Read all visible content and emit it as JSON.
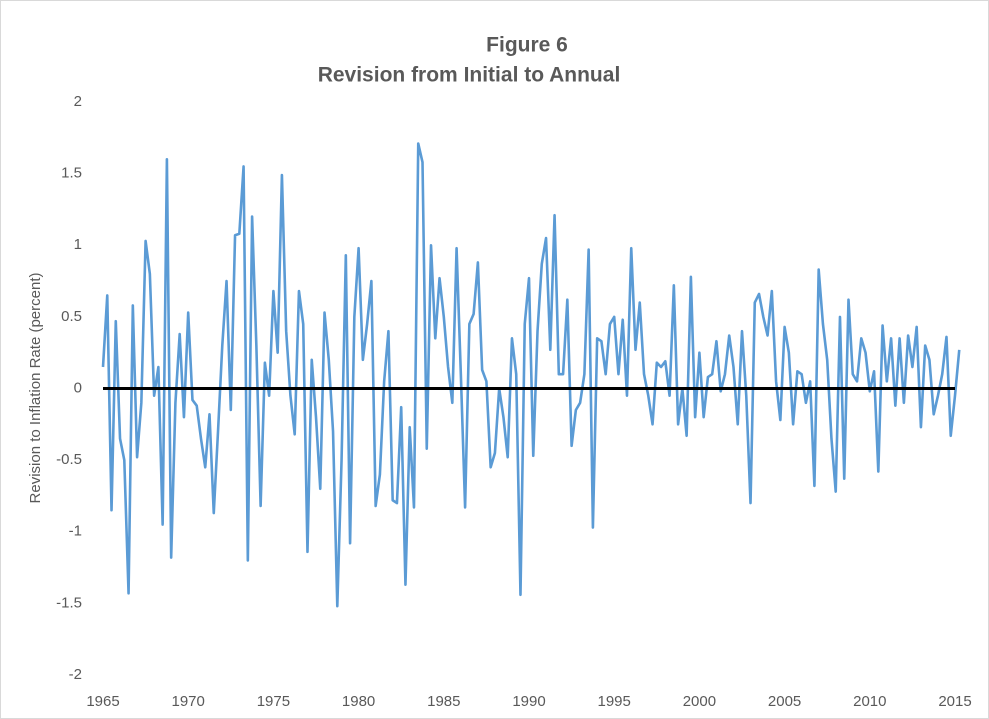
{
  "chart_data": {
    "type": "line",
    "title": "Figure 6",
    "subtitle": "Revision from Initial to Annual",
    "y_label": "Revision to Inflation Rate (percent)",
    "color": "#5b9bd5",
    "xlim": [
      1965,
      2015
    ],
    "xticks": [
      1965,
      1970,
      1975,
      1980,
      1985,
      1990,
      1995,
      2000,
      2005,
      2010,
      2015
    ],
    "ylim": [
      -2,
      2
    ],
    "yticks": [
      -2,
      -1.5,
      -1,
      -0.5,
      0,
      0.5,
      1,
      1.5,
      2
    ],
    "x": [
      1965,
      1965.25,
      1965.5,
      1965.75,
      1966,
      1966.25,
      1966.5,
      1966.75,
      1967,
      1967.25,
      1967.5,
      1967.75,
      1968,
      1968.25,
      1968.5,
      1968.75,
      1969,
      1969.25,
      1969.5,
      1969.75,
      1970,
      1970.25,
      1970.5,
      1970.75,
      1971,
      1971.25,
      1971.5,
      1971.75,
      1972,
      1972.25,
      1972.5,
      1972.75,
      1973,
      1973.25,
      1973.5,
      1973.75,
      1974,
      1974.25,
      1974.5,
      1974.75,
      1975,
      1975.25,
      1975.5,
      1975.75,
      1976,
      1976.25,
      1976.5,
      1976.75,
      1977,
      1977.25,
      1977.5,
      1977.75,
      1978,
      1978.25,
      1978.5,
      1978.75,
      1979,
      1979.25,
      1979.5,
      1979.75,
      1980,
      1980.25,
      1980.5,
      1980.75,
      1981,
      1981.25,
      1981.5,
      1981.75,
      1982,
      1982.25,
      1982.5,
      1982.75,
      1983,
      1983.25,
      1983.5,
      1983.75,
      1984,
      1984.25,
      1984.5,
      1984.75,
      1985,
      1985.25,
      1985.5,
      1985.75,
      1986,
      1986.25,
      1986.5,
      1986.75,
      1987,
      1987.25,
      1987.5,
      1987.75,
      1988,
      1988.25,
      1988.5,
      1988.75,
      1989,
      1989.25,
      1989.5,
      1989.75,
      1990,
      1990.25,
      1990.5,
      1990.75,
      1991,
      1991.25,
      1991.5,
      1991.75,
      1992,
      1992.25,
      1992.5,
      1992.75,
      1993,
      1993.25,
      1993.5,
      1993.75,
      1994,
      1994.25,
      1994.5,
      1994.75,
      1995,
      1995.25,
      1995.5,
      1995.75,
      1996,
      1996.25,
      1996.5,
      1996.75,
      1997,
      1997.25,
      1997.5,
      1997.75,
      1998,
      1998.25,
      1998.5,
      1998.75,
      1999,
      1999.25,
      1999.5,
      1999.75,
      2000,
      2000.25,
      2000.5,
      2000.75,
      2001,
      2001.25,
      2001.5,
      2001.75,
      2002,
      2002.25,
      2002.5,
      2002.75,
      2003,
      2003.25,
      2003.5,
      2003.75,
      2004,
      2004.25,
      2004.5,
      2004.75,
      2005,
      2005.25,
      2005.5,
      2005.75,
      2006,
      2006.25,
      2006.5,
      2006.75,
      2007,
      2007.25,
      2007.5,
      2007.75,
      2008,
      2008.25,
      2008.5,
      2008.75,
      2009,
      2009.25,
      2009.5,
      2009.75,
      2010,
      2010.25,
      2010.5,
      2010.75,
      2011,
      2011.25,
      2011.5,
      2011.75,
      2012,
      2012.25,
      2012.5,
      2012.75,
      2013,
      2013.25,
      2013.5,
      2013.75,
      2014,
      2014.25,
      2014.5,
      2014.75,
      2015,
      2015.25
    ],
    "values": [
      0.15,
      0.65,
      -0.85,
      0.47,
      -0.35,
      -0.5,
      -1.43,
      0.58,
      -0.48,
      -0.1,
      1.03,
      0.8,
      -0.05,
      0.15,
      -0.95,
      1.6,
      -1.18,
      -0.1,
      0.38,
      -0.2,
      0.53,
      -0.08,
      -0.12,
      -0.35,
      -0.55,
      -0.18,
      -0.87,
      -0.3,
      0.3,
      0.75,
      -0.15,
      1.07,
      1.08,
      1.55,
      -1.2,
      1.2,
      0.3,
      -0.82,
      0.18,
      -0.05,
      0.68,
      0.25,
      1.49,
      0.4,
      -0.05,
      -0.32,
      0.68,
      0.45,
      -1.14,
      0.2,
      -0.2,
      -0.7,
      0.53,
      0.2,
      -0.3,
      -1.52,
      -0.5,
      0.93,
      -1.08,
      0.5,
      0.98,
      0.2,
      0.45,
      0.75,
      -0.82,
      -0.6,
      0.05,
      0.4,
      -0.78,
      -0.8,
      -0.13,
      -1.37,
      -0.27,
      -0.83,
      1.71,
      1.58,
      -0.42,
      1.0,
      0.35,
      0.77,
      0.5,
      0.15,
      -0.1,
      0.98,
      0.1,
      -0.83,
      0.45,
      0.52,
      0.88,
      0.13,
      0.05,
      -0.55,
      -0.45,
      0.0,
      -0.2,
      -0.48,
      0.35,
      0.1,
      -1.44,
      0.45,
      0.77,
      -0.47,
      0.4,
      0.87,
      1.05,
      0.27,
      1.21,
      0.1,
      0.1,
      0.62,
      -0.4,
      -0.15,
      -0.1,
      0.1,
      0.97,
      -0.97,
      0.35,
      0.33,
      0.1,
      0.45,
      0.5,
      0.1,
      0.48,
      -0.05,
      0.98,
      0.27,
      0.6,
      0.1,
      -0.05,
      -0.25,
      0.18,
      0.15,
      0.19,
      -0.05,
      0.72,
      -0.25,
      0.0,
      -0.33,
      0.78,
      -0.2,
      0.25,
      -0.2,
      0.08,
      0.1,
      0.33,
      -0.02,
      0.1,
      0.37,
      0.15,
      -0.25,
      0.4,
      -0.05,
      -0.8,
      0.6,
      0.66,
      0.5,
      0.37,
      0.68,
      0.05,
      -0.22,
      0.43,
      0.25,
      -0.25,
      0.12,
      0.1,
      -0.1,
      0.05,
      -0.68,
      0.83,
      0.45,
      0.2,
      -0.35,
      -0.72,
      0.5,
      -0.63,
      0.62,
      0.1,
      0.05,
      0.35,
      0.25,
      -0.02,
      0.12,
      -0.58,
      0.44,
      0.05,
      0.35,
      -0.12,
      0.35,
      -0.1,
      0.37,
      0.15,
      0.43,
      -0.27,
      0.3,
      0.2,
      -0.18,
      -0.05,
      0.1,
      0.36,
      -0.33,
      -0.05,
      0.27
    ]
  }
}
